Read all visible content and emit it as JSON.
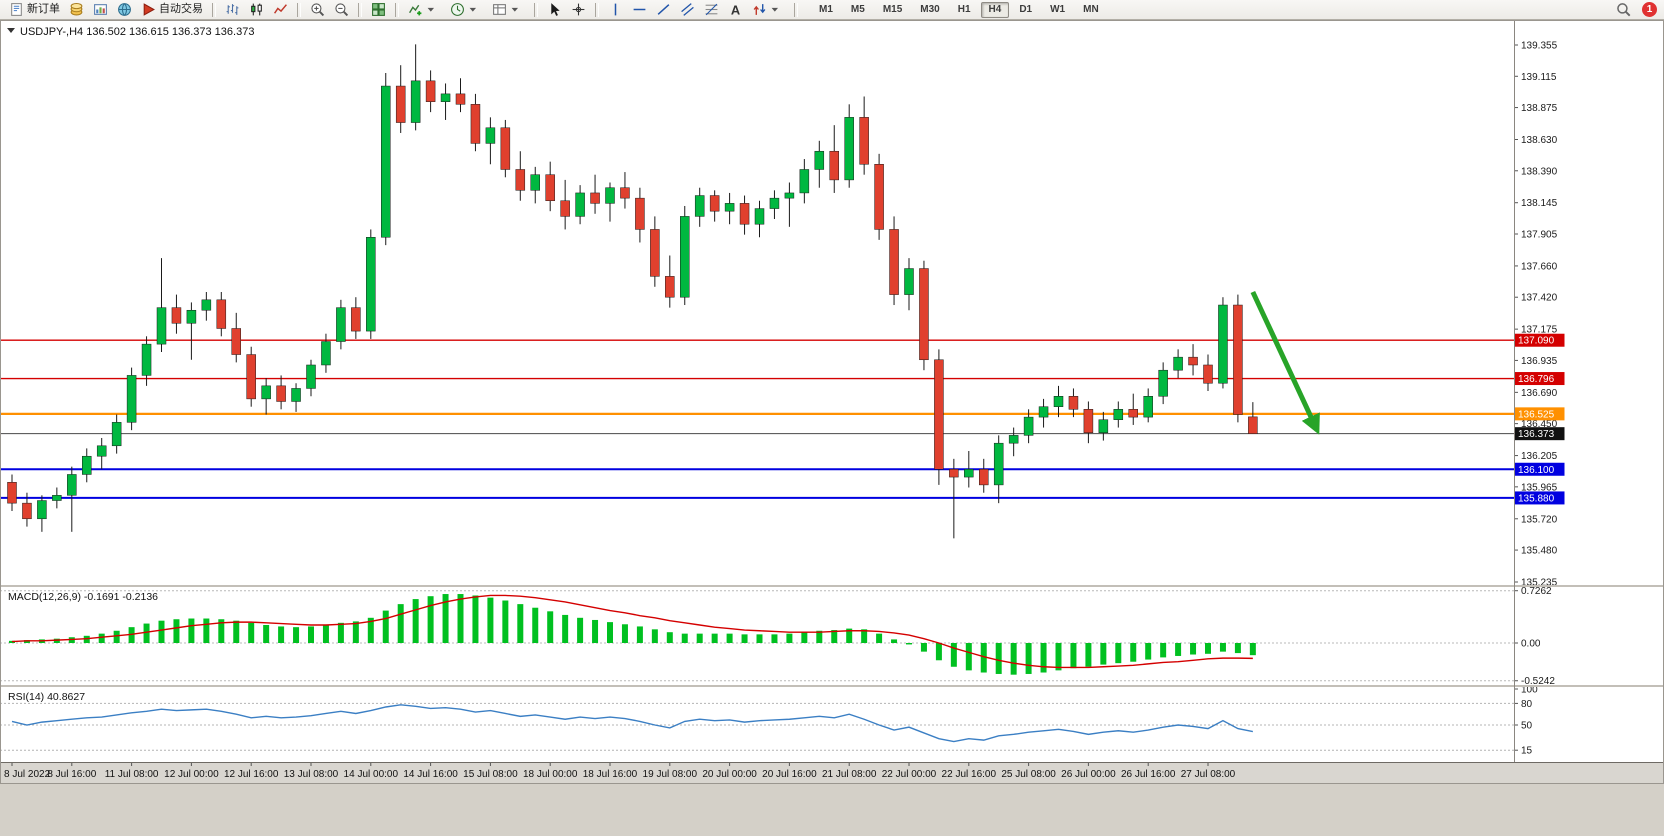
{
  "toolbar": {
    "new_order_label": "新订单",
    "auto_trading_label": "自动交易",
    "timeframes": [
      "M1",
      "M5",
      "M15",
      "M30",
      "H1",
      "H4",
      "D1",
      "W1",
      "MN"
    ],
    "active_timeframe": "H4",
    "notification_count": "1",
    "left_items": [
      {
        "type": "button",
        "name": "new-order-button",
        "icon": "new-order-icon",
        "label_key": "new_order_label"
      },
      {
        "type": "icon-button",
        "name": "coins-button",
        "icon": "coins-icon"
      },
      {
        "type": "icon-button",
        "name": "chart-window-button",
        "icon": "chart-window-icon"
      },
      {
        "type": "icon-button",
        "name": "globe-button",
        "icon": "globe-icon"
      },
      {
        "type": "button",
        "name": "auto-trading-button",
        "icon": "play-icon",
        "label_key": "auto_trading_label"
      },
      {
        "type": "separator"
      },
      {
        "type": "icon-button",
        "name": "bar-chart-button",
        "icon": "bar-chart-icon"
      },
      {
        "type": "icon-button",
        "name": "candlestick-chart-button",
        "icon": "candlestick-icon"
      },
      {
        "type": "icon-button",
        "name": "line-chart-button",
        "icon": "line-chart-icon"
      },
      {
        "type": "separator"
      },
      {
        "type": "icon-button",
        "name": "zoom-in-button",
        "icon": "zoom-in-icon"
      },
      {
        "type": "icon-button",
        "name": "zoom-out-button",
        "icon": "zoom-out-icon"
      },
      {
        "type": "separator"
      },
      {
        "type": "icon-button",
        "name": "tile-windows-button",
        "icon": "tile-windows-icon"
      },
      {
        "type": "separator"
      },
      {
        "type": "icon-button",
        "name": "indicators-button",
        "icon": "indicators-icon",
        "chevron": true
      },
      {
        "type": "icon-button",
        "name": "periods-button",
        "icon": "clock-icon",
        "chevron": true
      },
      {
        "type": "icon-button",
        "name": "templates-button",
        "icon": "template-icon",
        "chevron": true
      },
      {
        "type": "separator"
      },
      {
        "type": "icon-button",
        "name": "cursor-button",
        "icon": "cursor-icon"
      },
      {
        "type": "icon-button",
        "name": "crosshair-button",
        "icon": "crosshair-icon"
      },
      {
        "type": "separator"
      },
      {
        "type": "icon-button",
        "name": "vertical-line-button",
        "icon": "vline-icon"
      },
      {
        "type": "icon-button",
        "name": "horizontal-line-button",
        "icon": "hline-icon"
      },
      {
        "type": "icon-button",
        "name": "trendline-button",
        "icon": "trendline-icon"
      },
      {
        "type": "icon-button",
        "name": "channel-button",
        "icon": "channel-icon"
      },
      {
        "type": "icon-button",
        "name": "fibonacci-button",
        "icon": "fibonacci-icon"
      },
      {
        "type": "icon-button",
        "name": "text-button",
        "icon": "text-icon"
      },
      {
        "type": "icon-button",
        "name": "arrows-button",
        "icon": "arrows-icon",
        "chevron": true
      },
      {
        "type": "separator"
      },
      {
        "type": "timeframes"
      }
    ]
  },
  "chart": {
    "symbol_period": "USDJPY-,H4",
    "open": "136.502",
    "high": "136.615",
    "low": "136.373",
    "close": "136.373"
  },
  "price_axis_labels": [
    "139.355",
    "139.115",
    "138.875",
    "138.630",
    "138.390",
    "138.145",
    "137.905",
    "137.660",
    "137.420",
    "137.175",
    "136.935",
    "136.690",
    "136.450",
    "136.205",
    "135.965",
    "135.720",
    "135.480",
    "135.235"
  ],
  "hlines": [
    {
      "price": "137.090",
      "value": 137.09,
      "color": "#d40000",
      "width": 1.4,
      "label_bg": "#d40000"
    },
    {
      "price": "136.796",
      "value": 136.796,
      "color": "#d40000",
      "width": 1.4,
      "label_bg": "#d40000"
    },
    {
      "price": "136.525",
      "value": 136.525,
      "color": "#ff9000",
      "width": 2.2,
      "label_bg": "#ff9000"
    },
    {
      "price": "136.373",
      "value": 136.373,
      "color": "#4a4a4a",
      "width": 1,
      "label_bg": "#111111"
    },
    {
      "price": "136.100",
      "value": 136.1,
      "color": "#0000e0",
      "width": 2,
      "label_bg": "#0000e0"
    },
    {
      "price": "135.880",
      "value": 135.88,
      "color": "#0000e0",
      "width": 2,
      "label_bg": "#0000e0"
    }
  ],
  "annotation_arrow": {
    "color": "#28a428",
    "from": {
      "bar": 83,
      "price": 137.46
    },
    "to": {
      "bar": 87.3,
      "price": 136.4
    }
  },
  "chart_data": {
    "type": "candlestick",
    "symbol": "USDJPY-",
    "timeframe": "H4",
    "up_color": "#00b840",
    "down_color": "#e0402e",
    "x_labels": [
      "8 Jul 2022",
      "8 Jul 16:00",
      "11 Jul 08:00",
      "12 Jul 00:00",
      "12 Jul 16:00",
      "13 Jul 08:00",
      "14 Jul 00:00",
      "14 Jul 16:00",
      "15 Jul 08:00",
      "18 Jul 00:00",
      "18 Jul 16:00",
      "19 Jul 08:00",
      "20 Jul 00:00",
      "20 Jul 16:00",
      "21 Jul 08:00",
      "22 Jul 00:00",
      "22 Jul 16:00",
      "25 Jul 08:00",
      "26 Jul 00:00",
      "26 Jul 16:00",
      "27 Jul 08:00"
    ],
    "x_label_bar_indices": [
      0,
      4,
      8,
      12,
      16,
      20,
      24,
      28,
      32,
      36,
      40,
      44,
      48,
      52,
      56,
      60,
      64,
      68,
      72,
      76,
      80
    ],
    "y_range": [
      135.235,
      139.355
    ],
    "candles_ohlc": [
      [
        136.0,
        136.06,
        135.78,
        135.84
      ],
      [
        135.84,
        135.92,
        135.66,
        135.72
      ],
      [
        135.72,
        135.9,
        135.62,
        135.86
      ],
      [
        135.86,
        135.96,
        135.8,
        135.9
      ],
      [
        135.9,
        136.12,
        135.62,
        136.06
      ],
      [
        136.06,
        136.26,
        136.0,
        136.2
      ],
      [
        136.2,
        136.34,
        136.1,
        136.28
      ],
      [
        136.28,
        136.52,
        136.22,
        136.46
      ],
      [
        136.46,
        136.88,
        136.4,
        136.82
      ],
      [
        136.82,
        137.12,
        136.74,
        137.06
      ],
      [
        137.06,
        137.72,
        137.0,
        137.34
      ],
      [
        137.34,
        137.44,
        137.14,
        137.22
      ],
      [
        137.22,
        137.38,
        136.94,
        137.32
      ],
      [
        137.32,
        137.46,
        137.24,
        137.4
      ],
      [
        137.4,
        137.46,
        137.12,
        137.18
      ],
      [
        137.18,
        137.3,
        136.92,
        136.98
      ],
      [
        136.98,
        137.04,
        136.58,
        136.64
      ],
      [
        136.64,
        136.8,
        136.52,
        136.74
      ],
      [
        136.74,
        136.82,
        136.56,
        136.62
      ],
      [
        136.62,
        136.76,
        136.54,
        136.72
      ],
      [
        136.72,
        136.94,
        136.66,
        136.9
      ],
      [
        136.9,
        137.14,
        136.84,
        137.08
      ],
      [
        137.08,
        137.4,
        137.02,
        137.34
      ],
      [
        137.34,
        137.42,
        137.1,
        137.16
      ],
      [
        137.16,
        137.94,
        137.1,
        137.88
      ],
      [
        137.88,
        139.14,
        137.82,
        139.04
      ],
      [
        139.04,
        139.2,
        138.68,
        138.76
      ],
      [
        138.76,
        139.36,
        138.7,
        139.08
      ],
      [
        139.08,
        139.16,
        138.84,
        138.92
      ],
      [
        138.92,
        139.06,
        138.78,
        138.98
      ],
      [
        138.98,
        139.1,
        138.84,
        138.9
      ],
      [
        138.9,
        138.98,
        138.54,
        138.6
      ],
      [
        138.6,
        138.8,
        138.44,
        138.72
      ],
      [
        138.72,
        138.78,
        138.34,
        138.4
      ],
      [
        138.4,
        138.54,
        138.16,
        138.24
      ],
      [
        138.24,
        138.42,
        138.14,
        138.36
      ],
      [
        138.36,
        138.46,
        138.08,
        138.16
      ],
      [
        138.16,
        138.32,
        137.94,
        138.04
      ],
      [
        138.04,
        138.28,
        137.98,
        138.22
      ],
      [
        138.22,
        138.36,
        138.06,
        138.14
      ],
      [
        138.14,
        138.3,
        138.0,
        138.26
      ],
      [
        138.26,
        138.38,
        138.1,
        138.18
      ],
      [
        138.18,
        138.26,
        137.84,
        137.94
      ],
      [
        137.94,
        138.04,
        137.5,
        137.58
      ],
      [
        137.58,
        137.74,
        137.34,
        137.42
      ],
      [
        137.42,
        138.12,
        137.36,
        138.04
      ],
      [
        138.04,
        138.26,
        137.96,
        138.2
      ],
      [
        138.2,
        138.24,
        138.0,
        138.08
      ],
      [
        138.08,
        138.22,
        137.98,
        138.14
      ],
      [
        138.14,
        138.2,
        137.9,
        137.98
      ],
      [
        137.98,
        138.16,
        137.88,
        138.1
      ],
      [
        138.1,
        138.24,
        138.02,
        138.18
      ],
      [
        138.18,
        138.3,
        137.96,
        138.22
      ],
      [
        138.22,
        138.48,
        138.14,
        138.4
      ],
      [
        138.4,
        138.62,
        138.26,
        138.54
      ],
      [
        138.54,
        138.74,
        138.22,
        138.32
      ],
      [
        138.32,
        138.9,
        138.26,
        138.8
      ],
      [
        138.8,
        138.96,
        138.36,
        138.44
      ],
      [
        138.44,
        138.52,
        137.86,
        137.94
      ],
      [
        137.94,
        138.04,
        137.36,
        137.44
      ],
      [
        137.44,
        137.72,
        137.32,
        137.64
      ],
      [
        137.64,
        137.7,
        136.86,
        136.94
      ],
      [
        136.94,
        137.02,
        135.98,
        136.1
      ],
      [
        136.1,
        136.18,
        135.57,
        136.04
      ],
      [
        136.04,
        136.24,
        135.96,
        136.1
      ],
      [
        136.1,
        136.18,
        135.92,
        135.98
      ],
      [
        135.98,
        136.36,
        135.84,
        136.3
      ],
      [
        136.3,
        136.42,
        136.2,
        136.36
      ],
      [
        136.36,
        136.56,
        136.3,
        136.5
      ],
      [
        136.5,
        136.64,
        136.42,
        136.58
      ],
      [
        136.58,
        136.74,
        136.5,
        136.66
      ],
      [
        136.66,
        136.72,
        136.5,
        136.56
      ],
      [
        136.56,
        136.62,
        136.3,
        136.38
      ],
      [
        136.38,
        136.54,
        136.32,
        136.48
      ],
      [
        136.48,
        136.62,
        136.42,
        136.56
      ],
      [
        136.56,
        136.68,
        136.44,
        136.5
      ],
      [
        136.5,
        136.72,
        136.46,
        136.66
      ],
      [
        136.66,
        136.92,
        136.6,
        136.86
      ],
      [
        136.86,
        137.02,
        136.8,
        136.96
      ],
      [
        136.96,
        137.06,
        136.82,
        136.9
      ],
      [
        136.9,
        136.98,
        136.7,
        136.76
      ],
      [
        136.76,
        137.42,
        136.72,
        137.36
      ],
      [
        137.36,
        137.44,
        136.46,
        136.52
      ],
      [
        136.502,
        136.615,
        136.373,
        136.373
      ]
    ]
  },
  "macd": {
    "name": "MACD(12,26,9)",
    "values_text": "-0.1691 -0.2136",
    "scale_labels": [
      "0.7262",
      "0.00",
      "-0.5242"
    ],
    "scale_values": [
      0.7262,
      0,
      -0.5242
    ],
    "histogram_color": "#00c020",
    "signal_color": "#d40000",
    "histogram": [
      0.03,
      0.04,
      0.05,
      0.06,
      0.08,
      0.1,
      0.13,
      0.17,
      0.22,
      0.27,
      0.31,
      0.33,
      0.34,
      0.34,
      0.33,
      0.31,
      0.28,
      0.25,
      0.23,
      0.22,
      0.23,
      0.25,
      0.28,
      0.3,
      0.35,
      0.45,
      0.54,
      0.61,
      0.65,
      0.68,
      0.68,
      0.66,
      0.63,
      0.59,
      0.54,
      0.49,
      0.44,
      0.39,
      0.35,
      0.32,
      0.29,
      0.26,
      0.23,
      0.19,
      0.15,
      0.13,
      0.13,
      0.13,
      0.13,
      0.12,
      0.12,
      0.12,
      0.13,
      0.15,
      0.17,
      0.18,
      0.2,
      0.19,
      0.13,
      0.05,
      -0.02,
      -0.12,
      -0.24,
      -0.33,
      -0.38,
      -0.41,
      -0.43,
      -0.44,
      -0.43,
      -0.41,
      -0.38,
      -0.35,
      -0.33,
      -0.3,
      -0.28,
      -0.26,
      -0.23,
      -0.2,
      -0.18,
      -0.16,
      -0.15,
      -0.12,
      -0.14,
      -0.1691
    ],
    "signal": [
      0.02,
      0.03,
      0.03,
      0.04,
      0.05,
      0.06,
      0.08,
      0.1,
      0.12,
      0.15,
      0.18,
      0.21,
      0.24,
      0.26,
      0.28,
      0.29,
      0.29,
      0.28,
      0.27,
      0.26,
      0.25,
      0.25,
      0.26,
      0.27,
      0.3,
      0.34,
      0.4,
      0.46,
      0.52,
      0.57,
      0.61,
      0.64,
      0.66,
      0.66,
      0.65,
      0.63,
      0.6,
      0.57,
      0.53,
      0.49,
      0.45,
      0.42,
      0.38,
      0.35,
      0.31,
      0.28,
      0.25,
      0.22,
      0.2,
      0.18,
      0.17,
      0.16,
      0.15,
      0.15,
      0.15,
      0.16,
      0.17,
      0.17,
      0.16,
      0.14,
      0.11,
      0.06,
      0.0,
      -0.07,
      -0.13,
      -0.19,
      -0.24,
      -0.28,
      -0.31,
      -0.33,
      -0.34,
      -0.34,
      -0.34,
      -0.33,
      -0.32,
      -0.31,
      -0.29,
      -0.27,
      -0.26,
      -0.24,
      -0.22,
      -0.21,
      -0.21,
      -0.2136
    ]
  },
  "rsi": {
    "name": "RSI(14)",
    "value_text": "40.8627",
    "scale_labels": [
      "100",
      "80",
      "50",
      "15"
    ],
    "scale_values": [
      100,
      80,
      50,
      15
    ],
    "levels": [
      80,
      50,
      15
    ],
    "line_color": "#3b7fc4",
    "values": [
      55,
      50,
      54,
      56,
      58,
      60,
      61,
      64,
      67,
      69,
      72,
      70,
      71,
      72,
      69,
      65,
      60,
      62,
      60,
      61,
      63,
      66,
      69,
      66,
      70,
      75,
      78,
      76,
      73,
      74,
      72,
      68,
      70,
      66,
      62,
      64,
      61,
      58,
      61,
      59,
      61,
      59,
      55,
      50,
      46,
      55,
      58,
      56,
      57,
      54,
      56,
      57,
      58,
      60,
      62,
      60,
      65,
      58,
      50,
      43,
      47,
      39,
      31,
      27,
      31,
      29,
      35,
      37,
      40,
      42,
      44,
      41,
      37,
      40,
      42,
      40,
      43,
      47,
      50,
      48,
      45,
      56,
      45,
      40.86
    ]
  }
}
